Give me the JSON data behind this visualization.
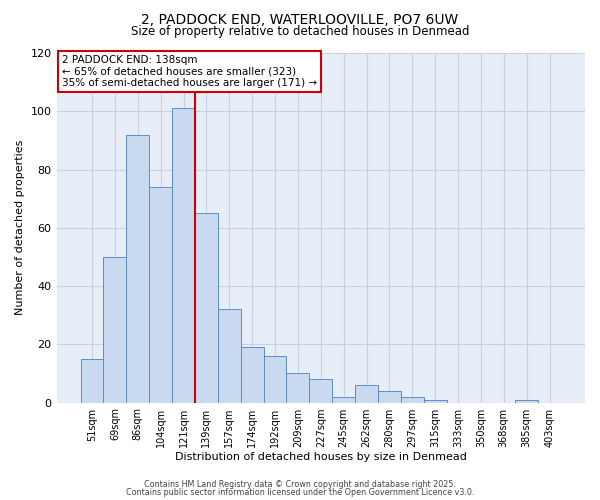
{
  "title": "2, PADDOCK END, WATERLOOVILLE, PO7 6UW",
  "subtitle": "Size of property relative to detached houses in Denmead",
  "xlabel": "Distribution of detached houses by size in Denmead",
  "ylabel": "Number of detached properties",
  "bar_labels": [
    "51sqm",
    "69sqm",
    "86sqm",
    "104sqm",
    "121sqm",
    "139sqm",
    "157sqm",
    "174sqm",
    "192sqm",
    "209sqm",
    "227sqm",
    "245sqm",
    "262sqm",
    "280sqm",
    "297sqm",
    "315sqm",
    "333sqm",
    "350sqm",
    "368sqm",
    "385sqm",
    "403sqm"
  ],
  "bar_values": [
    15,
    50,
    92,
    74,
    101,
    65,
    32,
    19,
    16,
    10,
    8,
    2,
    6,
    4,
    2,
    1,
    0,
    0,
    0,
    1,
    0
  ],
  "bar_color": "#c9d9f0",
  "bar_edge_color": "#5b8dc8",
  "vline_color": "#cc0000",
  "vline_index": 5,
  "ylim": [
    0,
    120
  ],
  "yticks": [
    0,
    20,
    40,
    60,
    80,
    100,
    120
  ],
  "annotation_title": "2 PADDOCK END: 138sqm",
  "annotation_line1": "← 65% of detached houses are smaller (323)",
  "annotation_line2": "35% of semi-detached houses are larger (171) →",
  "annotation_box_color": "#ffffff",
  "annotation_box_edge_color": "#cc0000",
  "footer1": "Contains HM Land Registry data © Crown copyright and database right 2025.",
  "footer2": "Contains public sector information licensed under the Open Government Licence v3.0.",
  "background_color": "#ffffff",
  "plot_bg_color": "#e8eef8",
  "grid_color": "#c5d0e0"
}
